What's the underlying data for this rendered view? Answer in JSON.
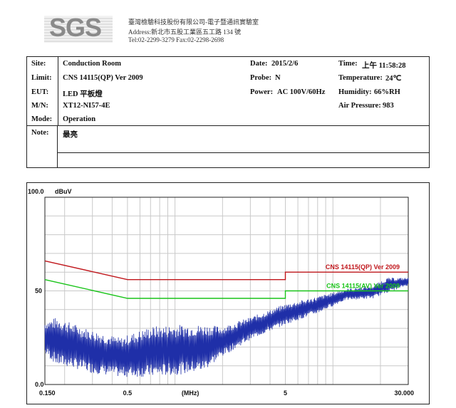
{
  "header": {
    "logo_text": "SGS",
    "company": "臺灣檢驗科技股份有限公司-電子暨通訊實驗室",
    "address": "Address:新北市五股工業區五工路 134 號",
    "contact": "Tel:02-2299-3279     Fax:02-2298-2698"
  },
  "info": {
    "site_label": "Site:",
    "site_value": "Conduction Room",
    "limit_label": "Limit:",
    "limit_value": "CNS 14115(QP) Ver 2009",
    "eut_label": "EUT:",
    "eut_value": "LED 平板燈",
    "mn_label": "M/N:",
    "mn_value": "XT12-NI57-4E",
    "mode_label": "Mode:",
    "mode_value": "Operation",
    "date_label": "Date:",
    "date_value": "2015/2/6",
    "probe_label": "Probe:",
    "probe_value": "N",
    "power_label": "Power:",
    "power_value": "AC 100V/60Hz",
    "time_label": "Time:",
    "time_value": "上午  11:58:28",
    "temp_label": "Temperature:",
    "temp_value": "24℃",
    "humidity_label": "Humidity:",
    "humidity_value": "66%RH",
    "pressure_label": "Air Pressure:",
    "pressure_value": "983",
    "note_label": "Note:",
    "note_value": "最亮"
  },
  "chart_data": {
    "type": "line",
    "y_top_label": "100.0",
    "y_unit": "dBuV",
    "xlabel": "(MHz)",
    "x_scale": "log",
    "xlim": [
      0.15,
      30
    ],
    "ylim": [
      0,
      100
    ],
    "x_ticks": [
      {
        "value": 0.15,
        "label": "0.150"
      },
      {
        "value": 0.5,
        "label": "0.5"
      },
      {
        "value": 5,
        "label": "5"
      },
      {
        "value": 30,
        "label": "30.000"
      }
    ],
    "y_ticks": [
      {
        "value": 100,
        "label": ""
      },
      {
        "value": 50,
        "label": "50"
      },
      {
        "value": 0,
        "label": "0.0"
      }
    ],
    "grid": true,
    "limit_lines": [
      {
        "name": "CNS 14115(QP) Ver 2009",
        "color": "#c0161b",
        "points": [
          [
            0.15,
            66
          ],
          [
            0.5,
            56
          ],
          [
            5,
            56
          ],
          [
            5,
            60
          ],
          [
            30,
            60
          ]
        ]
      },
      {
        "name": "CNS 14115(AV) Ver 2009",
        "color": "#19c419",
        "points": [
          [
            0.15,
            56
          ],
          [
            0.5,
            46
          ],
          [
            5,
            46
          ],
          [
            5,
            50
          ],
          [
            30,
            50
          ]
        ]
      }
    ],
    "trace": {
      "color": "#1f2fa8",
      "envelope": [
        {
          "x": 0.15,
          "lo": 16,
          "hi": 34
        },
        {
          "x": 0.18,
          "lo": 10,
          "hi": 36
        },
        {
          "x": 0.22,
          "lo": 9,
          "hi": 33
        },
        {
          "x": 0.3,
          "lo": 6,
          "hi": 29
        },
        {
          "x": 0.45,
          "lo": 4,
          "hi": 25
        },
        {
          "x": 0.7,
          "lo": 4,
          "hi": 31
        },
        {
          "x": 1.0,
          "lo": 5,
          "hi": 32
        },
        {
          "x": 1.5,
          "lo": 7,
          "hi": 32
        },
        {
          "x": 2.0,
          "lo": 15,
          "hi": 31
        },
        {
          "x": 3.0,
          "lo": 24,
          "hi": 36
        },
        {
          "x": 5.0,
          "lo": 32,
          "hi": 43
        },
        {
          "x": 8.0,
          "lo": 38,
          "hi": 47
        },
        {
          "x": 12.0,
          "lo": 45,
          "hi": 51
        },
        {
          "x": 18.0,
          "lo": 46,
          "hi": 53
        },
        {
          "x": 22.0,
          "lo": 49,
          "hi": 57
        },
        {
          "x": 30.0,
          "lo": 53,
          "hi": 57
        }
      ]
    }
  }
}
